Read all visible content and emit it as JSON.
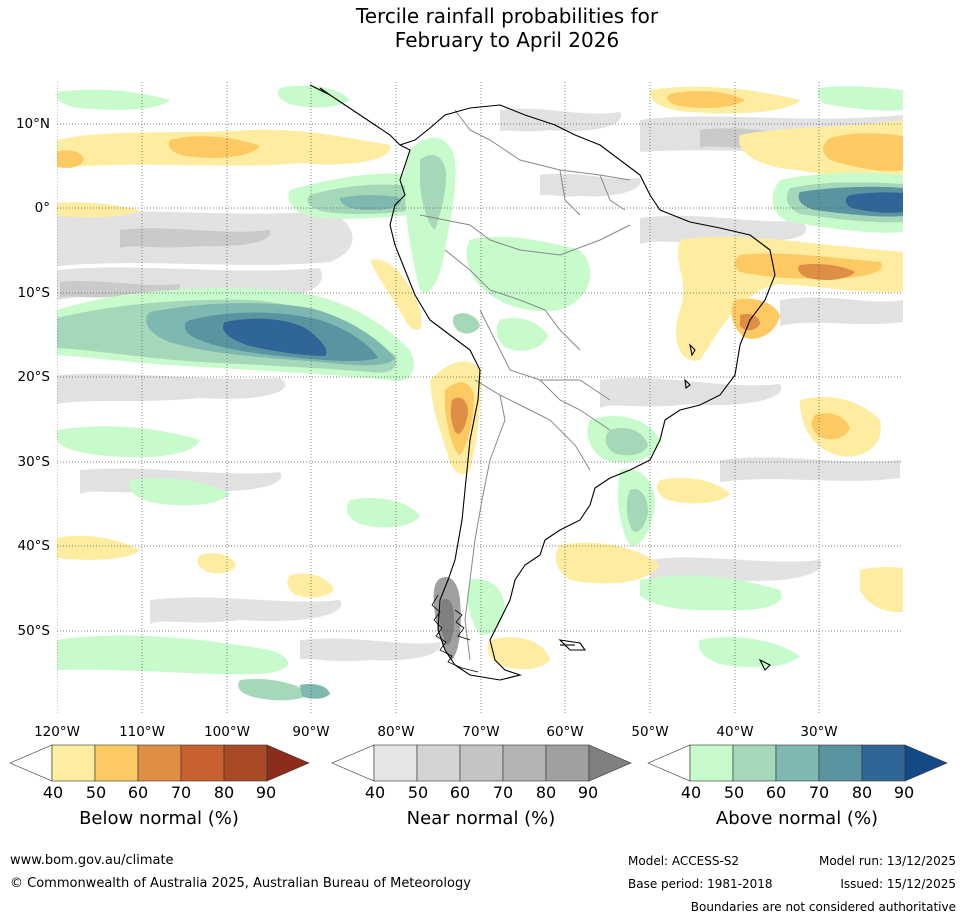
{
  "title": {
    "line1": "Tercile rainfall probabilities for",
    "line2": "February to April 2026"
  },
  "map": {
    "lat_ticks": [
      "10°N",
      "0°",
      "10°S",
      "20°S",
      "30°S",
      "40°S",
      "50°S"
    ],
    "lon_ticks": [
      "120°W",
      "110°W",
      "100°W",
      "90°W",
      "80°W",
      "70°W",
      "60°W",
      "50°W",
      "40°W",
      "30°W"
    ],
    "colors": {
      "land_border": "#000000",
      "country_border": "#888888",
      "grid": "#555555"
    }
  },
  "legends": {
    "below": {
      "title": "Below normal (%)",
      "labels": [
        "40",
        "50",
        "60",
        "70",
        "80",
        "90"
      ],
      "colors": [
        "#ffffff",
        "#feeda0",
        "#fdc962",
        "#df8f45",
        "#c8612f",
        "#a94a26",
        "#8c2c1a"
      ]
    },
    "near": {
      "title": "Near normal (%)",
      "labels": [
        "40",
        "50",
        "60",
        "70",
        "80",
        "90"
      ],
      "colors": [
        "#ffffff",
        "#e5e5e5",
        "#d4d4d4",
        "#c4c4c4",
        "#b3b3b3",
        "#a0a0a0",
        "#808080"
      ]
    },
    "above": {
      "title": "Above normal (%)",
      "labels": [
        "40",
        "50",
        "60",
        "70",
        "80",
        "90"
      ],
      "colors": [
        "#ffffff",
        "#c7fbcb",
        "#a5d8b9",
        "#7eb8b0",
        "#5b94a1",
        "#306598",
        "#134a86"
      ]
    }
  },
  "footer": {
    "website": "www.bom.gov.au/climate",
    "copyright": "© Commonwealth of Australia 2025, Australian Bureau of Meteorology",
    "model": "Model: ACCESS-S2",
    "base_period": "Base period: 1981-2018",
    "model_run": "Model run: 13/12/2025",
    "issued": "Issued: 15/12/2025",
    "disclaimer": "Boundaries are not considered authoritative"
  }
}
